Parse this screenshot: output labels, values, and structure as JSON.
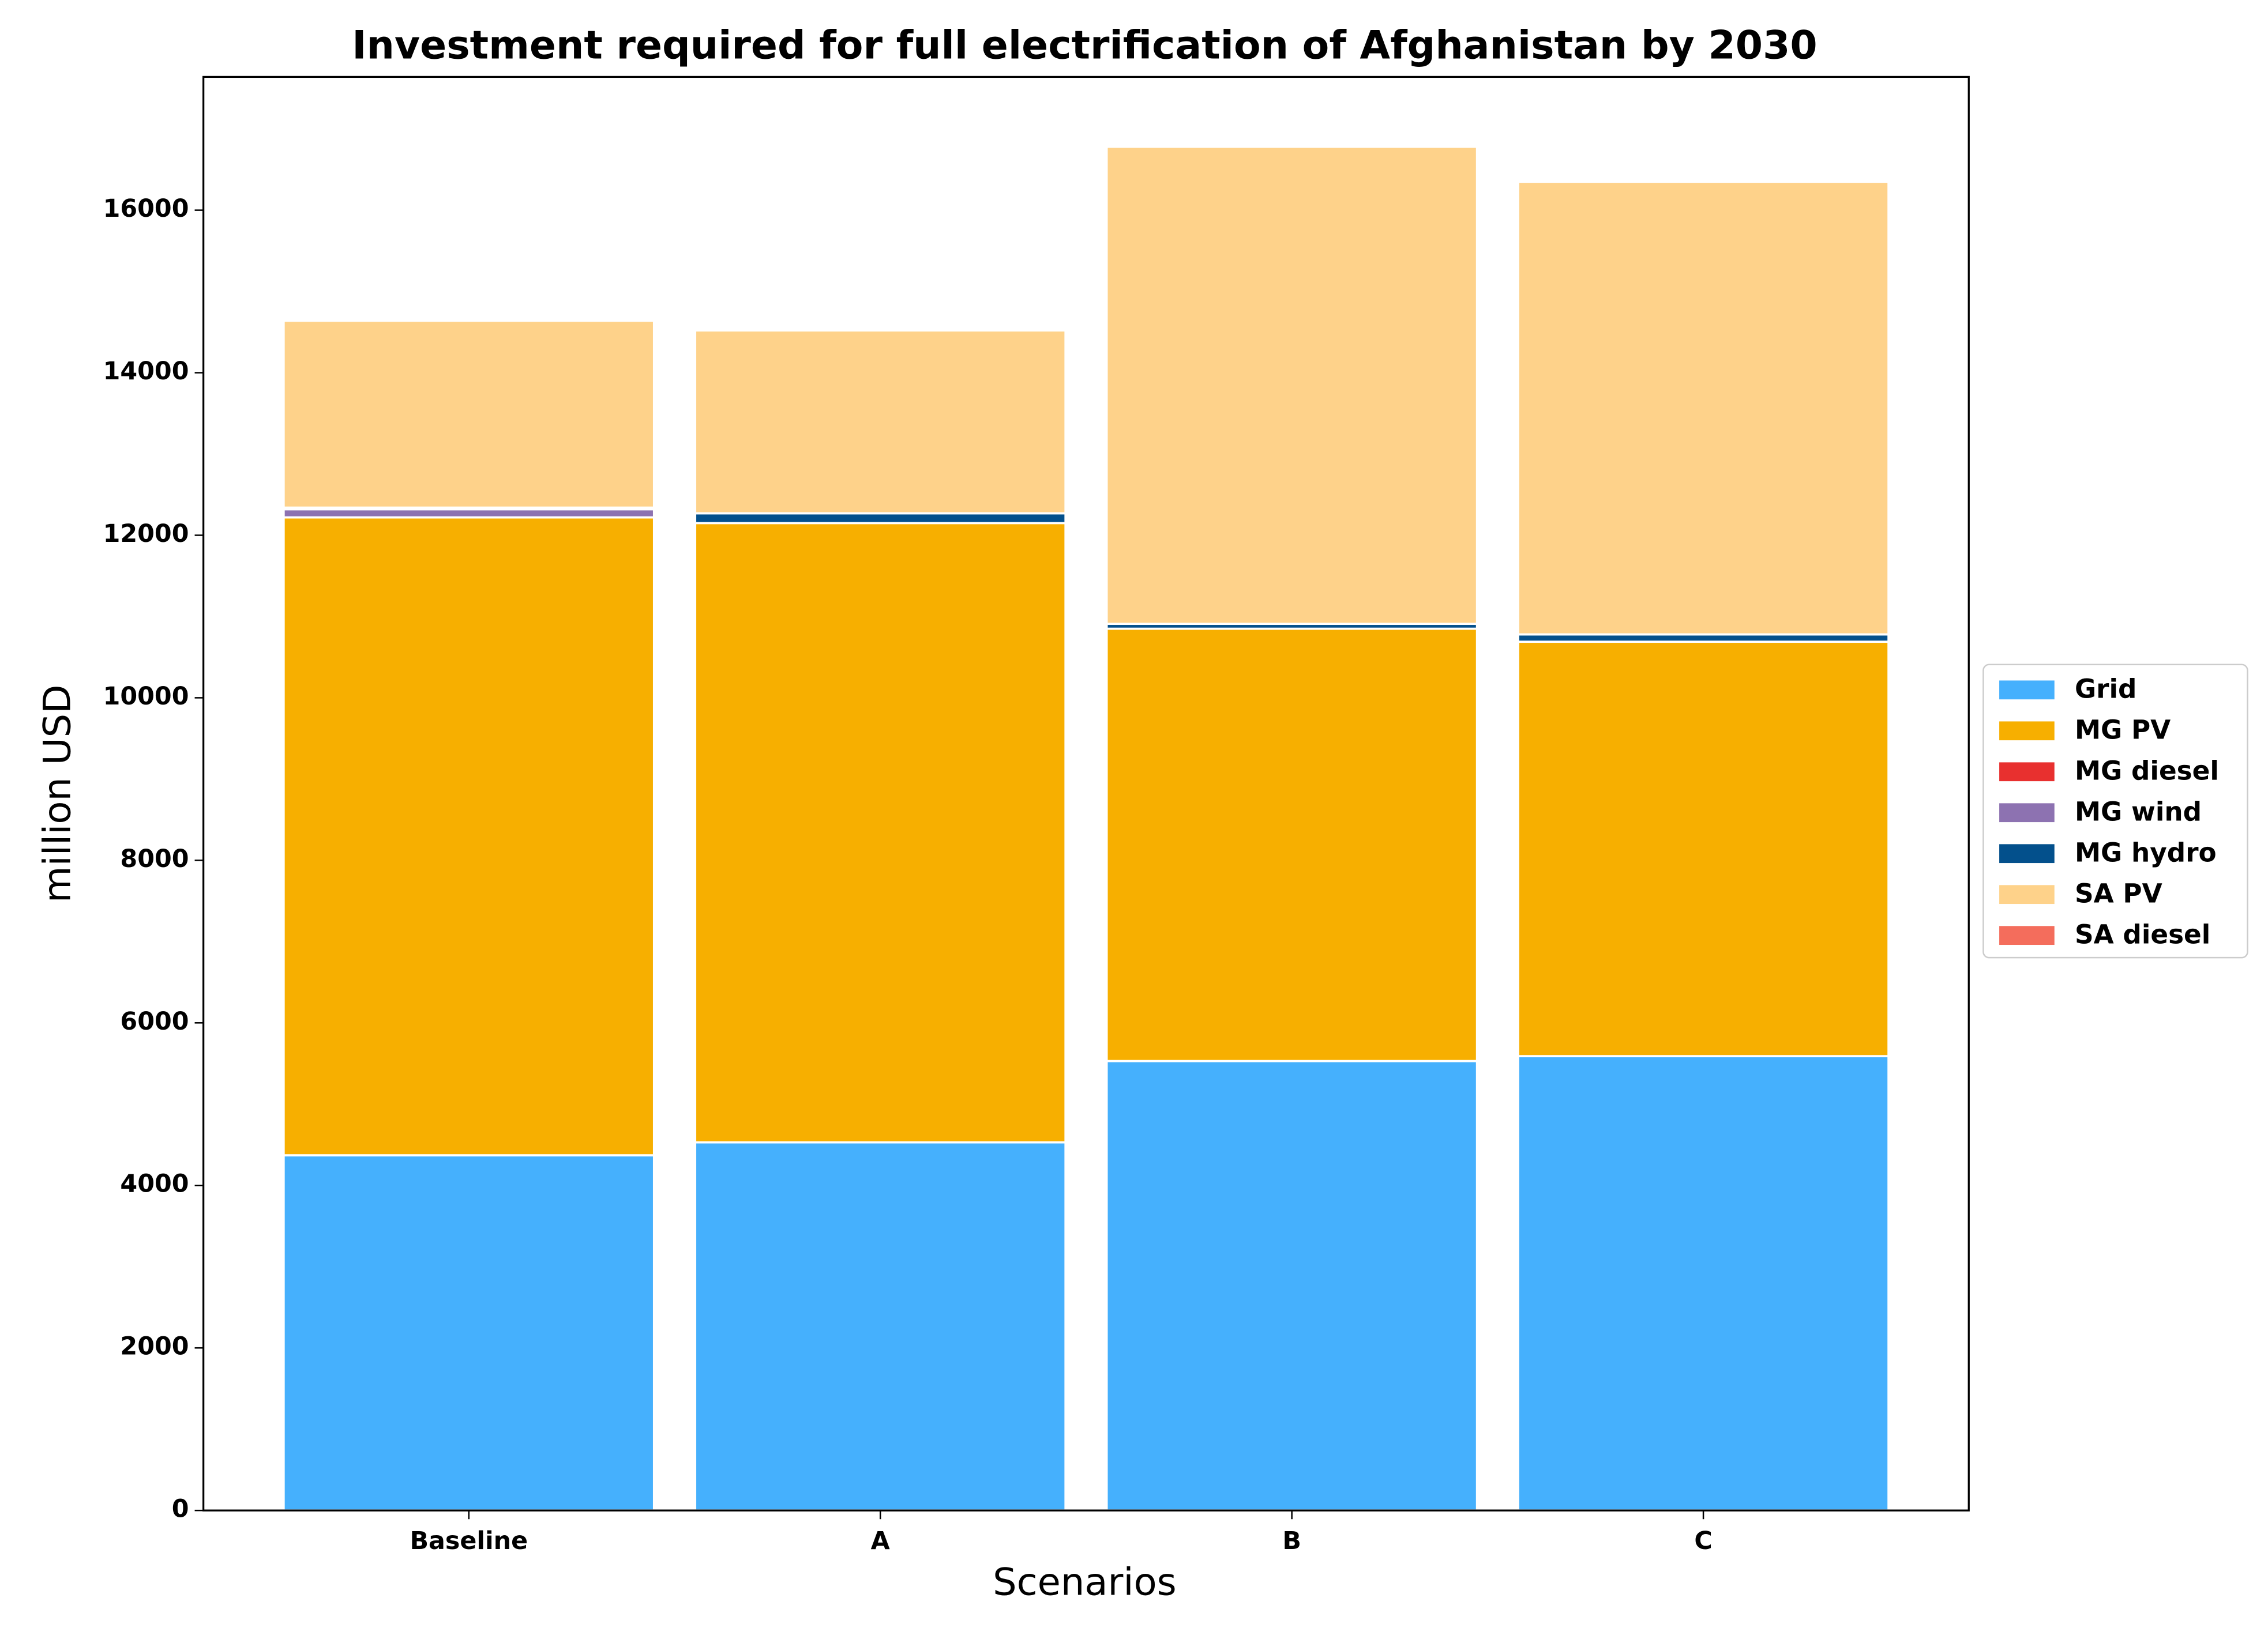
{
  "chart_data": {
    "type": "stacked_bar",
    "title": "Investment required for full electrification of Afghanistan by 2030",
    "x_label": "Scenarios",
    "y_label": "million USD",
    "categories": [
      "Baseline",
      "A",
      "B",
      "C"
    ],
    "series": [
      {
        "name": "Grid",
        "color": "#45b0fd",
        "values": [
          4370,
          4530,
          5530,
          5590
        ]
      },
      {
        "name": "MG PV",
        "color": "#f7af00",
        "values": [
          7850,
          7620,
          5320,
          5100
        ]
      },
      {
        "name": "MG diesel",
        "color": "#e8302f",
        "values": [
          0,
          0,
          0,
          0
        ]
      },
      {
        "name": "MG wind",
        "color": "#8d72b1",
        "values": [
          100,
          0,
          0,
          0
        ]
      },
      {
        "name": "MG hydro",
        "color": "#03508c",
        "values": [
          20,
          120,
          60,
          90
        ]
      },
      {
        "name": "SA PV",
        "color": "#fed28a",
        "values": [
          2300,
          2250,
          5870,
          5570
        ]
      },
      {
        "name": "SA diesel",
        "color": "#f46d5c",
        "values": [
          0,
          0,
          0,
          0
        ]
      }
    ],
    "ylim": [
      0,
      17640
    ],
    "yticks": [
      0,
      2000,
      4000,
      6000,
      8000,
      10000,
      12000,
      14000,
      16000
    ],
    "legend": "right"
  }
}
